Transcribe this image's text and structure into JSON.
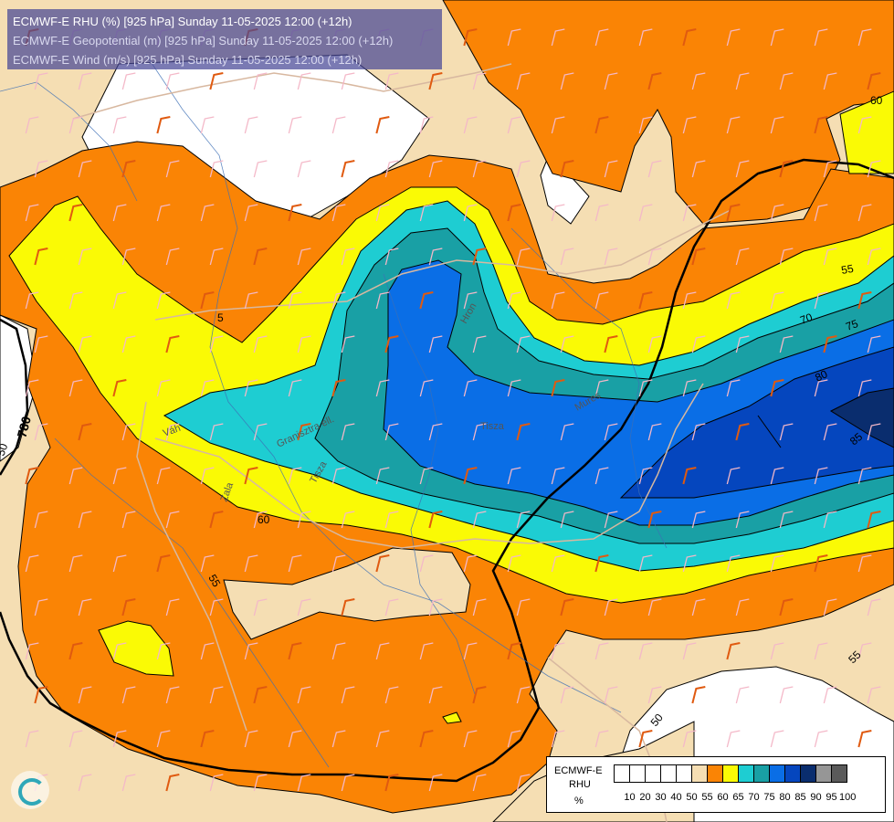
{
  "header": {
    "line1": "ECMWF-E RHU (%) [925 hPa] Sunday 11-05-2025 12:00 (+12h)",
    "line2": "ECMWF-E Geopotential (m) [925 hPa] Sunday 11-05-2025 12:00 (+12h)",
    "line3": "ECMWF-E Wind (m/s) [925 hPa] Sunday 11-05-2025 12:00 (+12h)"
  },
  "legend": {
    "model": "ECMWF-E",
    "variable": "RHU",
    "unit": "%",
    "ticks": [
      "10",
      "20",
      "30",
      "40",
      "50",
      "55",
      "60",
      "65",
      "70",
      "75",
      "80",
      "85",
      "90",
      "95",
      "100"
    ],
    "colors": [
      "#ffffff",
      "#ffffff",
      "#ffffff",
      "#ffffff",
      "#ffffff",
      "#f5deb3",
      "#fa8405",
      "#fafa05",
      "#1ecdd2",
      "#19a0a5",
      "#0a6ee6",
      "#0546be",
      "#0a2d6e",
      "#969696",
      "#5a5a5a"
    ]
  },
  "contour_labels": {
    "c60_top": "60",
    "c55_right": "55",
    "c70": "70",
    "c75": "75",
    "c80": "80",
    "c85": "85",
    "c60_left": "60",
    "c55_lower": "55",
    "c55_bottom_right": "55",
    "c50_bottom": "50",
    "c50_left": "50",
    "c5_small": "5",
    "geo780": "780"
  },
  "place_labels": {
    "vah": "Váh",
    "zala": "Zala",
    "tisza": "Tisza",
    "hron": "Hron",
    "gran": "Granisztra ell.",
    "tisa_left": "Tisza",
    "mures": "Mures"
  },
  "colors": {
    "c50": "#ffffff",
    "c55": "#f5deb3",
    "c60": "#fa8405",
    "c65": "#fafa05",
    "c70": "#1ecdd2",
    "c75": "#19a0a5",
    "c80": "#0a6ee6",
    "c85": "#0546be",
    "c90": "#0a2d6e",
    "header_bg": "#4b4b96"
  },
  "icons": {
    "logo": "ecmwf-swirl-logo",
    "wind": "wind-barb-icon"
  }
}
